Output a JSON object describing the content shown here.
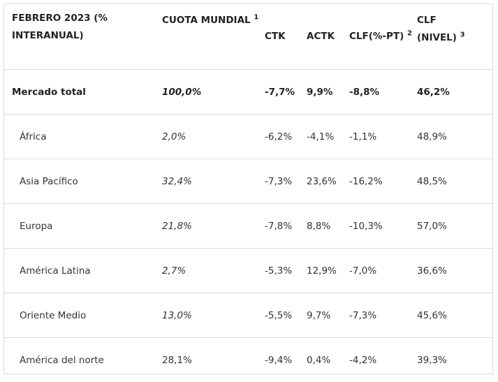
{
  "headers": [
    {
      "text": "FEBRERO 2023 (% INTERANUAL)",
      "sup": ""
    },
    {
      "text": "CUOTA MUNDIAL",
      "sup": "1"
    },
    {
      "text": "CTK",
      "sup": ""
    },
    {
      "text": "ACTK",
      "sup": ""
    },
    {
      "text": "CLF(%-PT)",
      "sup": "2"
    },
    {
      "text": "CLF (NIVEL)",
      "sup": "3"
    }
  ],
  "rows": [
    {
      "region": "Mercado total",
      "cuota": "100,0%",
      "ctk": "-7,7%",
      "actk": "9,9%",
      "clf_pt": "-8,8%",
      "clf_nivel": "46,2%"
    },
    {
      "region": "África",
      "cuota": "2,0%",
      "ctk": "-6,2%",
      "actk": "-4,1%",
      "clf_pt": "-1,1%",
      "clf_nivel": "48,9%"
    },
    {
      "region": "Asia Pacífico",
      "cuota": "32,4%",
      "ctk": "-7,3%",
      "actk": "23,6%",
      "clf_pt": "-16,2%",
      "clf_nivel": "48,5%"
    },
    {
      "region": "Europa",
      "cuota": "21,8%",
      "ctk": "-7,8%",
      "actk": "8,8%",
      "clf_pt": "-10,3%",
      "clf_nivel": "57,0%"
    },
    {
      "region": "América Latina",
      "cuota": "2,7%",
      "ctk": "-5,3%",
      "actk": "12,9%",
      "clf_pt": "-7,0%",
      "clf_nivel": "36,6%"
    },
    {
      "region": "Oriente Medio",
      "cuota": "13,0%",
      "ctk": "-5,5%",
      "actk": "9,7%",
      "clf_pt": "-7,3%",
      "clf_nivel": "45,6%"
    },
    {
      "region": "América del norte",
      "cuota": "28,1%",
      "ctk": "-9,4%",
      "actk": "0,4%",
      "clf_pt": "-4,2%",
      "clf_nivel": "39,3%"
    }
  ]
}
